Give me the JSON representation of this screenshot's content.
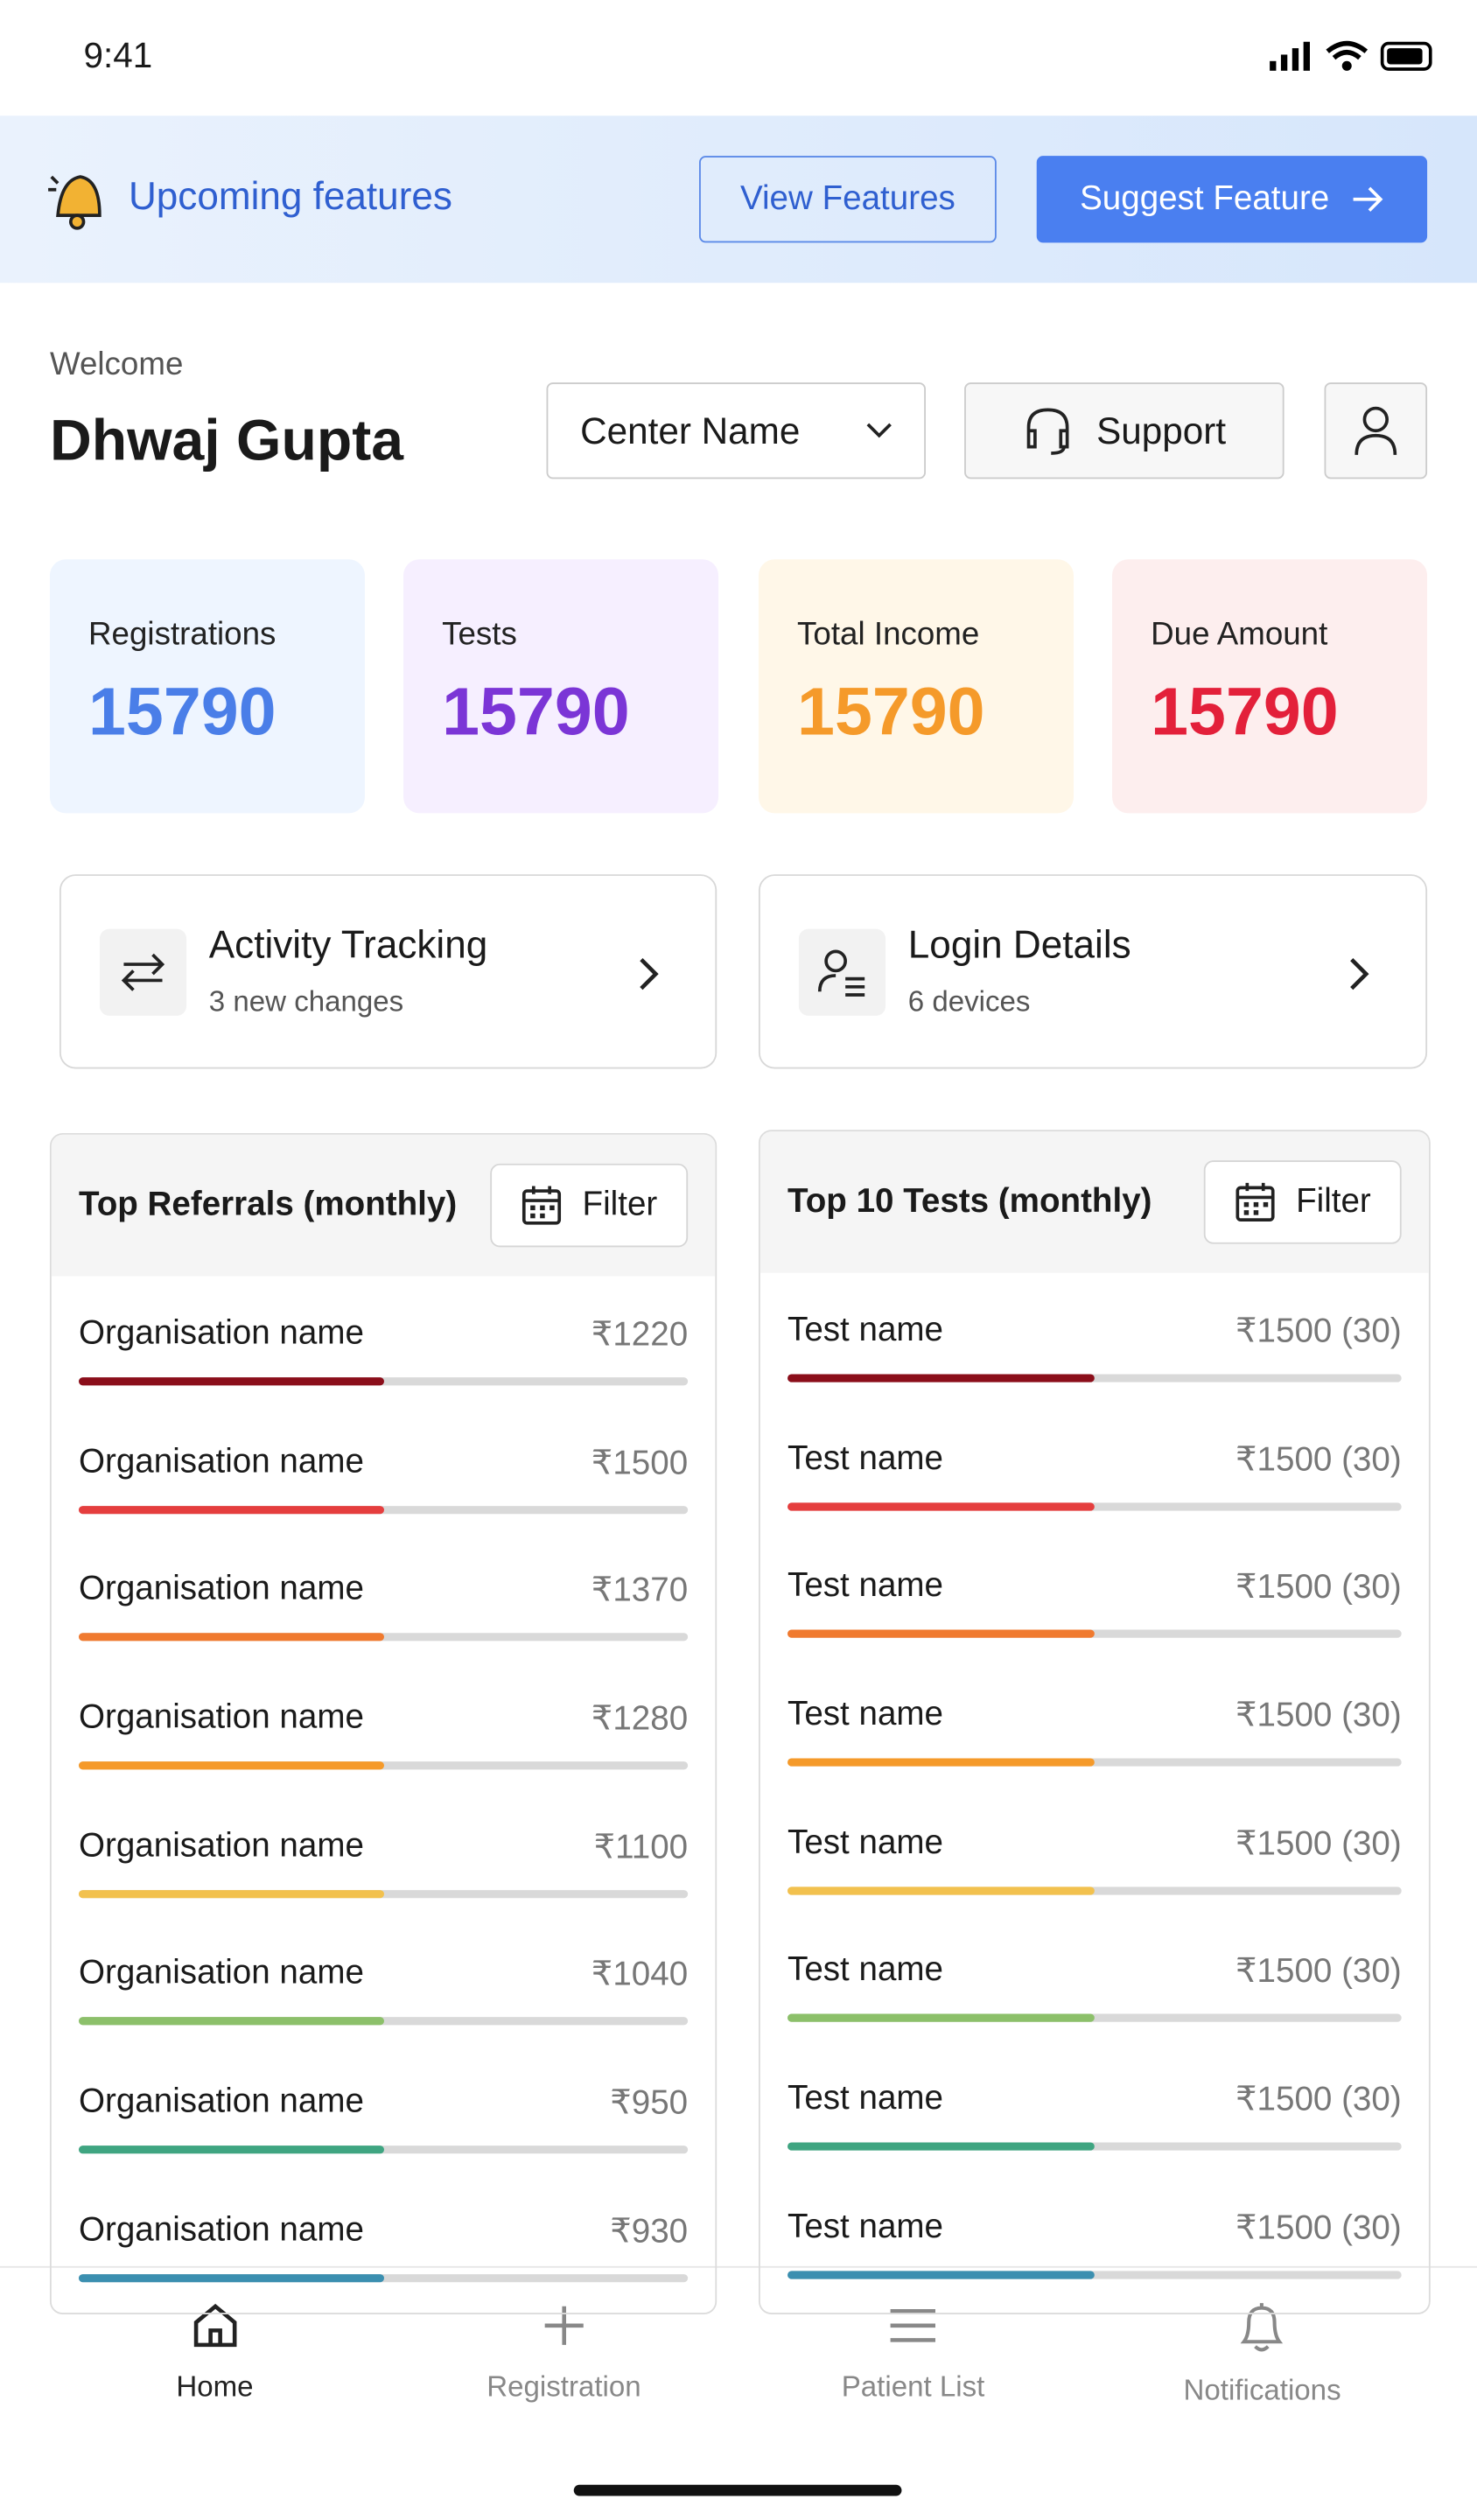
{
  "status_bar": {
    "time": "9:41"
  },
  "banner": {
    "title": "Upcoming features",
    "view_button": "View Features",
    "suggest_button": "Suggest Feature"
  },
  "welcome": {
    "greeting": "Welcome",
    "name": "Dhwaj Gupta",
    "center_select": "Center Name",
    "support_button": "Support"
  },
  "stats": [
    {
      "label": "Registrations",
      "value": 15790
    },
    {
      "label": "Tests",
      "value": 15790
    },
    {
      "label": "Total Income",
      "value": 15790
    },
    {
      "label": "Due Amount",
      "value": 15790
    }
  ],
  "links": [
    {
      "title": "Activity Tracking",
      "subtitle": "3 new changes"
    },
    {
      "title": "Login Details",
      "subtitle": "6 devices"
    }
  ],
  "referrals": {
    "title": "Top Referrals (monthly)",
    "filter": "Filter",
    "rows": [
      {
        "name": "Organisation name",
        "amount": "₹1220"
      },
      {
        "name": "Organisation name",
        "amount": "₹1500"
      },
      {
        "name": "Organisation name",
        "amount": "₹1370"
      },
      {
        "name": "Organisation name",
        "amount": "₹1280"
      },
      {
        "name": "Organisation name",
        "amount": "₹1100"
      },
      {
        "name": "Organisation name",
        "amount": "₹1040"
      },
      {
        "name": "Organisation name",
        "amount": "₹950"
      },
      {
        "name": "Organisation name",
        "amount": "₹930"
      }
    ]
  },
  "tests": {
    "title": "Top 10 Tests (monthly)",
    "filter": "Filter",
    "rows": [
      {
        "name": "Test name",
        "amount": "₹1500 (30)"
      },
      {
        "name": "Test name",
        "amount": "₹1500 (30)"
      },
      {
        "name": "Test name",
        "amount": "₹1500 (30)"
      },
      {
        "name": "Test name",
        "amount": "₹1500 (30)"
      },
      {
        "name": "Test name",
        "amount": "₹1500 (30)"
      },
      {
        "name": "Test name",
        "amount": "₹1500 (30)"
      },
      {
        "name": "Test name",
        "amount": "₹1500 (30)"
      },
      {
        "name": "Test name",
        "amount": "₹1500 (30)"
      }
    ]
  },
  "nav": [
    "Home",
    "Registration",
    "Patient List",
    "Notifications"
  ]
}
